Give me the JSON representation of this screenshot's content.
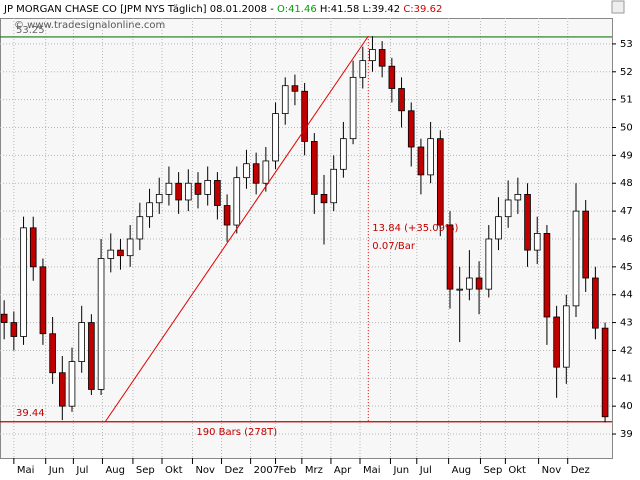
{
  "chart_data": {
    "type": "candlestick",
    "title": "JP MORGAN CHASE CO [JPM NYS  Täglich] 08.01.2008 - ",
    "quote": [
      {
        "text": "O:41.46",
        "color": "#00a000"
      },
      {
        "text": " H:41.58 L:39.42 ",
        "color": "#000000"
      },
      {
        "text": "C:39.62",
        "color": "#d00000"
      }
    ],
    "subtitle": "© www.tradesignalonline.com",
    "up_color": "#ffffff",
    "down_color": "#c00000",
    "x": [
      0,
      7,
      14,
      21,
      28,
      35,
      42,
      49,
      56,
      63,
      70,
      77,
      84,
      91,
      98,
      105,
      112,
      119,
      126,
      133,
      140,
      147,
      154,
      161,
      168,
      175,
      182,
      189,
      196,
      203,
      210,
      217,
      224,
      231,
      238,
      245,
      252,
      259,
      266,
      273,
      280,
      287,
      294,
      301,
      308,
      315,
      322,
      329,
      336,
      343,
      350,
      357,
      364,
      371,
      378,
      385,
      392,
      399,
      406,
      413,
      420,
      427,
      434
    ],
    "open": [
      43.3,
      43,
      42.5,
      46.4,
      45,
      42.6,
      41.2,
      40,
      41.6,
      43,
      40.6,
      45.3,
      45.6,
      45.4,
      46,
      46.8,
      47.3,
      47.6,
      48,
      47.4,
      48,
      47.6,
      48.1,
      47.2,
      46.5,
      48.2,
      48.7,
      48,
      48.8,
      50.5,
      51.5,
      51.3,
      49.5,
      47.6,
      47.3,
      48.5,
      49.6,
      51.8,
      52.4,
      52.8,
      52.2,
      51.4,
      50.6,
      49.3,
      48.3,
      49.6,
      46.5,
      44.2,
      44.2,
      44.6,
      44.2,
      46,
      46.8,
      47.4,
      47.6,
      45.6,
      46.2,
      43.2,
      41.4,
      43.6,
      47,
      44.6,
      42.8
    ],
    "high": [
      43.8,
      43.4,
      46.8,
      46.8,
      45.3,
      43.2,
      41.8,
      42.1,
      43.6,
      43.3,
      46,
      46.2,
      46,
      46.5,
      47.3,
      47.8,
      48.2,
      48.6,
      48.4,
      48.5,
      48.4,
      48.6,
      48.4,
      47.6,
      48.6,
      49.2,
      49.1,
      49.3,
      50.9,
      51.8,
      51.9,
      51.6,
      49.8,
      48.3,
      49,
      50.2,
      52.4,
      52.9,
      53.28,
      53.1,
      52.5,
      51.8,
      50.9,
      49.6,
      50.2,
      49.9,
      47,
      45,
      45.6,
      45.2,
      46.5,
      47.5,
      48.1,
      48.2,
      48,
      46.8,
      46.5,
      43.6,
      44,
      48,
      47.4,
      45,
      43
    ],
    "low": [
      42.4,
      42,
      42.2,
      44.5,
      42.2,
      40.8,
      39.5,
      39.8,
      41.2,
      40.4,
      40.4,
      44.8,
      44.9,
      45,
      45.6,
      46.4,
      46.9,
      47.2,
      46.9,
      47,
      47.1,
      47.2,
      46.7,
      45.9,
      46.2,
      47.8,
      47.6,
      47.7,
      48.5,
      50.1,
      50.8,
      49,
      46.9,
      45.8,
      47,
      48.2,
      49.4,
      51.4,
      52,
      51.8,
      50.9,
      50,
      48.6,
      47.6,
      48,
      46.1,
      43.5,
      42.3,
      43.8,
      43.3,
      43.9,
      45.6,
      46.4,
      46.9,
      45,
      45.1,
      42.2,
      40.3,
      40.8,
      43.2,
      44.1,
      42.4,
      39.42
    ],
    "close": [
      43,
      42.5,
      46.4,
      45,
      42.6,
      41.2,
      40,
      41.6,
      43,
      40.6,
      45.3,
      45.6,
      45.4,
      46,
      46.8,
      47.3,
      47.6,
      48,
      47.4,
      48,
      47.6,
      48.1,
      47.2,
      46.5,
      48.2,
      48.7,
      48,
      48.8,
      50.5,
      51.5,
      51.3,
      49.5,
      47.6,
      47.3,
      48.5,
      49.6,
      51.8,
      52.4,
      52.8,
      52.2,
      51.4,
      50.6,
      49.3,
      48.3,
      49.6,
      46.5,
      44.2,
      44.2,
      44.6,
      44.2,
      46,
      46.8,
      47.4,
      47.6,
      45.6,
      46.2,
      43.2,
      41.4,
      43.6,
      47,
      44.6,
      42.8,
      39.62
    ],
    "xlim": [
      -3,
      439
    ],
    "xticks": [
      {
        "value": 7,
        "label": "Mai"
      },
      {
        "value": 30,
        "label": "Jun"
      },
      {
        "value": 50,
        "label": "Jul"
      },
      {
        "value": 71,
        "label": "Aug"
      },
      {
        "value": 93,
        "label": "Sep"
      },
      {
        "value": 114,
        "label": "Okt"
      },
      {
        "value": 136,
        "label": "Nov"
      },
      {
        "value": 157,
        "label": "Dez"
      },
      {
        "value": 178,
        "label": "2007"
      },
      {
        "value": 196,
        "label": "Feb"
      },
      {
        "value": 215,
        "label": "Mrz"
      },
      {
        "value": 236,
        "label": "Apr"
      },
      {
        "value": 257,
        "label": "Mai"
      },
      {
        "value": 279,
        "label": "Jun"
      },
      {
        "value": 298,
        "label": "Jul"
      },
      {
        "value": 321,
        "label": "Aug"
      },
      {
        "value": 344,
        "label": "Sep"
      },
      {
        "value": 362,
        "label": "Okt"
      },
      {
        "value": 386,
        "label": "Nov"
      },
      {
        "value": 407,
        "label": "Dez"
      }
    ],
    "ylim": [
      38.14,
      53.93
    ],
    "yticks": [
      39,
      40,
      41,
      42,
      43,
      44,
      45,
      46,
      47,
      48,
      49,
      50,
      51,
      52,
      53
    ],
    "grid": true,
    "hlines": [
      {
        "value": 53.25,
        "color": "#1a7a1a"
      },
      {
        "value": 39.44,
        "color": "#c00000"
      }
    ],
    "trendline": {
      "x": [
        73,
        263
      ],
      "y": [
        39.44,
        53.28
      ],
      "color": "#e00000"
    },
    "annotations": [
      "13.84 (+35.09%)",
      "0.07/Bar",
      "190 Bars (278T)"
    ]
  }
}
